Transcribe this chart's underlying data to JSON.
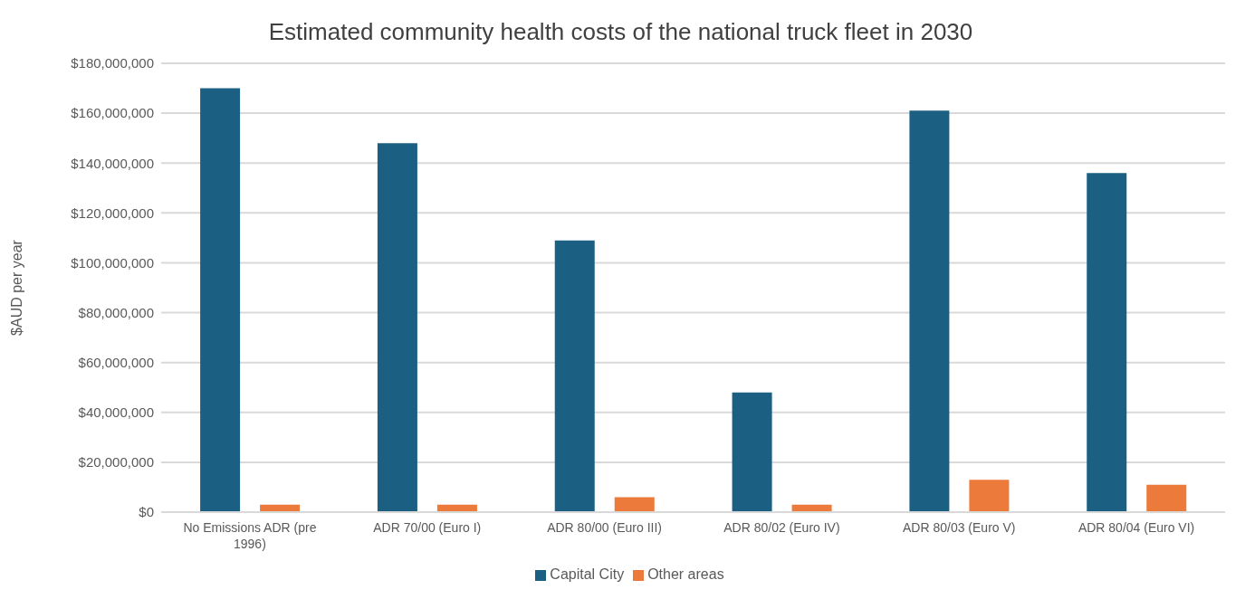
{
  "chart_data": {
    "type": "bar",
    "title": "Estimated community health costs of the national truck fleet in 2030",
    "ylabel": "$AUD per year",
    "categories": [
      "No Emissions ADR (pre 1996)",
      "ADR 70/00 (Euro I)",
      "ADR 80/00 (Euro III)",
      "ADR 80/02 (Euro IV)",
      "ADR 80/03 (Euro V)",
      "ADR 80/04 (Euro VI)"
    ],
    "series": [
      {
        "name": "Capital City",
        "color": "#1b6083",
        "values": [
          170000000,
          148000000,
          109000000,
          48000000,
          161000000,
          136000000
        ]
      },
      {
        "name": "Other areas",
        "color": "#ec7a3b",
        "values": [
          3000000,
          3000000,
          6000000,
          3000000,
          13000000,
          11000000
        ]
      }
    ],
    "ylim": [
      0,
      180000000
    ],
    "yticks": [
      {
        "value": 0,
        "label": "$0"
      },
      {
        "value": 20000000,
        "label": "$20,000,000"
      },
      {
        "value": 40000000,
        "label": "$40,000,000"
      },
      {
        "value": 60000000,
        "label": "$60,000,000"
      },
      {
        "value": 80000000,
        "label": "$80,000,000"
      },
      {
        "value": 100000000,
        "label": "$100,000,000"
      },
      {
        "value": 120000000,
        "label": "$120,000,000"
      },
      {
        "value": 140000000,
        "label": "$140,000,000"
      },
      {
        "value": 160000000,
        "label": "$160,000,000"
      },
      {
        "value": 180000000,
        "label": "$180,000,000"
      }
    ],
    "grid": "y",
    "legend": "bottom"
  }
}
